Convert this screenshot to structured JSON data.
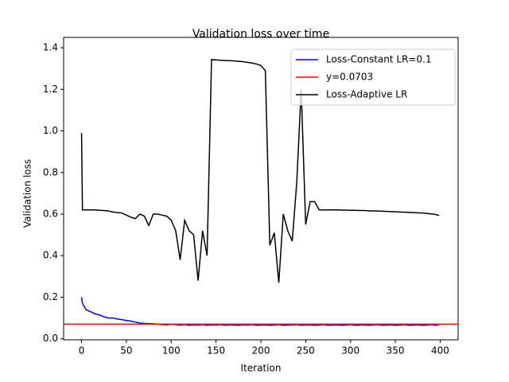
{
  "chart_data": {
    "type": "line",
    "title": "Validation loss over time",
    "xlabel": "Iteration",
    "ylabel": "Validation loss",
    "x": [
      0,
      1,
      5,
      10,
      15,
      20,
      25,
      30,
      35,
      40,
      45,
      50,
      55,
      60,
      65,
      70,
      75,
      80,
      85,
      90,
      95,
      100,
      105,
      110,
      115,
      120,
      125,
      130,
      135,
      140,
      145,
      150,
      155,
      160,
      165,
      170,
      175,
      180,
      185,
      190,
      195,
      200,
      205,
      210,
      215,
      220,
      225,
      230,
      235,
      240,
      245,
      250,
      255,
      260,
      265,
      270,
      275,
      280,
      285,
      290,
      295,
      300,
      305,
      310,
      315,
      320,
      325,
      330,
      335,
      340,
      345,
      350,
      355,
      360,
      365,
      370,
      375,
      380,
      385,
      390,
      395,
      399
    ],
    "series": [
      {
        "name": "Loss-Constant LR=0.1",
        "color": "#0000ff",
        "values": [
          0.2,
          0.17,
          0.14,
          0.13,
          0.12,
          0.115,
          0.105,
          0.1,
          0.1,
          0.095,
          0.092,
          0.088,
          0.085,
          0.08,
          0.076,
          0.074,
          0.073,
          0.072,
          0.07,
          0.068,
          0.067,
          0.07,
          0.068,
          0.066,
          0.068,
          0.065,
          0.067,
          0.066,
          0.068,
          0.065,
          0.067,
          0.066,
          0.068,
          0.065,
          0.067,
          0.066,
          0.065,
          0.067,
          0.066,
          0.068,
          0.065,
          0.066,
          0.067,
          0.065,
          0.066,
          0.068,
          0.065,
          0.066,
          0.067,
          0.068,
          0.065,
          0.066,
          0.067,
          0.065,
          0.066,
          0.068,
          0.065,
          0.066,
          0.067,
          0.065,
          0.066,
          0.068,
          0.065,
          0.066,
          0.067,
          0.065,
          0.066,
          0.068,
          0.065,
          0.066,
          0.067,
          0.065,
          0.066,
          0.068,
          0.065,
          0.066,
          0.067,
          0.065,
          0.066,
          0.068,
          0.065,
          0.068
        ]
      },
      {
        "name": "Loss-Adaptive LR",
        "color": "#000000",
        "values": [
          0.99,
          0.62,
          0.62,
          0.62,
          0.62,
          0.618,
          0.617,
          0.615,
          0.61,
          0.607,
          0.605,
          0.595,
          0.585,
          0.578,
          0.6,
          0.59,
          0.545,
          0.6,
          0.6,
          0.595,
          0.59,
          0.57,
          0.52,
          0.38,
          0.57,
          0.52,
          0.5,
          0.28,
          0.52,
          0.4,
          1.343,
          1.342,
          1.34,
          1.339,
          1.338,
          1.337,
          1.335,
          1.333,
          1.33,
          1.327,
          1.322,
          1.315,
          1.29,
          0.45,
          0.51,
          0.27,
          0.6,
          0.52,
          0.47,
          0.75,
          1.2,
          0.55,
          0.66,
          0.66,
          0.62,
          0.62,
          0.62,
          0.62,
          0.62,
          0.619,
          0.619,
          0.618,
          0.618,
          0.617,
          0.617,
          0.616,
          0.615,
          0.615,
          0.614,
          0.613,
          0.612,
          0.611,
          0.61,
          0.609,
          0.608,
          0.607,
          0.606,
          0.605,
          0.603,
          0.601,
          0.598,
          0.593
        ]
      }
    ],
    "hline": {
      "name": "y=0.0703",
      "value": 0.0703,
      "color": "#ff0000"
    },
    "xlim": [
      -20,
      420
    ],
    "ylim": [
      -0.005,
      1.45
    ],
    "xticks": [
      0,
      50,
      100,
      150,
      200,
      250,
      300,
      350,
      400
    ],
    "yticks": [
      {
        "value": 0,
        "label": "0.0"
      },
      0.2,
      0.4,
      0.6,
      0.8,
      {
        "value": 1,
        "label": "1.0"
      },
      1.2,
      1.4
    ],
    "legend": "upper right"
  }
}
